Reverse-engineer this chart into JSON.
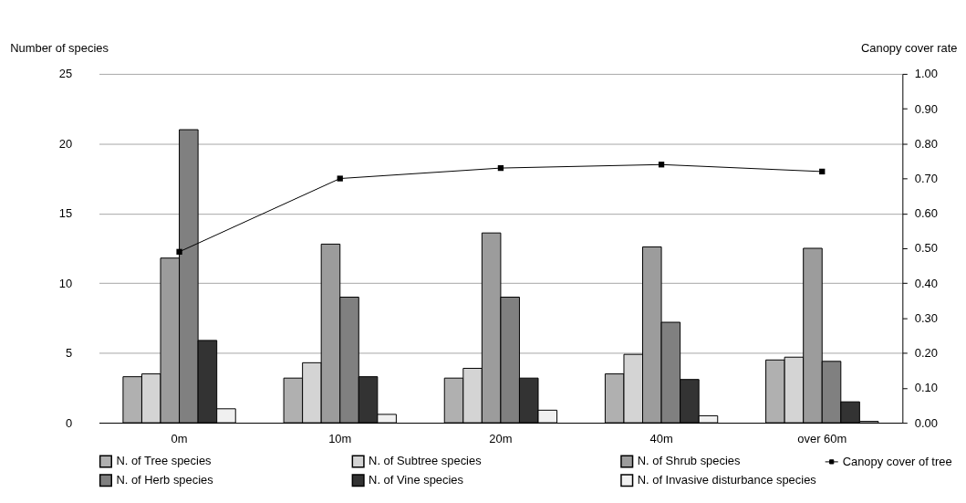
{
  "chart_data": {
    "type": "bar",
    "ylabel": "Number of species",
    "y2label": "Canopy cover rate",
    "categories": [
      "0m",
      "10m",
      "20m",
      "40m",
      "over 60m"
    ],
    "series": [
      {
        "name": "N. of Tree species",
        "color": "#b0b0b0",
        "values": [
          3.3,
          3.2,
          3.2,
          3.5,
          4.5
        ]
      },
      {
        "name": "N. of Subtree species",
        "color": "#d4d4d4",
        "values": [
          3.5,
          4.3,
          3.9,
          4.9,
          4.7
        ]
      },
      {
        "name": "N. of Shrub species",
        "color": "#9c9c9c",
        "values": [
          11.8,
          12.8,
          13.6,
          12.6,
          12.5
        ]
      },
      {
        "name": "N. of Herb species",
        "color": "#808080",
        "values": [
          21,
          9.0,
          9.0,
          7.2,
          4.4
        ]
      },
      {
        "name": "N. of Vine species",
        "color": "#333333",
        "values": [
          5.9,
          3.3,
          3.2,
          3.1,
          1.5
        ]
      },
      {
        "name": "N. of Invasive disturbance species",
        "color": "#f0f0f0",
        "values": [
          1.0,
          0.6,
          0.9,
          0.5,
          0.1
        ]
      },
      {
        "name": "Canopy cover of tree",
        "type": "line",
        "axis": "y2",
        "color": "#000000",
        "marker": "square",
        "values": [
          0.49,
          0.7,
          0.73,
          0.74,
          0.72
        ]
      }
    ],
    "ylim": [
      0,
      25
    ],
    "yticks": [
      0,
      5,
      10,
      15,
      20,
      25
    ],
    "y2lim": [
      0,
      1
    ],
    "y2ticks": [
      {
        "value": 0,
        "label": "0.00"
      },
      {
        "value": 0.1,
        "label": "0.10"
      },
      {
        "value": 0.2,
        "label": "0.20"
      },
      {
        "value": 0.3,
        "label": "0.30"
      },
      {
        "value": 0.4,
        "label": "0.40"
      },
      {
        "value": 0.5,
        "label": "0.50"
      },
      {
        "value": 0.6,
        "label": "0.60"
      },
      {
        "value": 0.7,
        "label": "0.70"
      },
      {
        "value": 0.8,
        "label": "0.80"
      },
      {
        "value": 0.9,
        "label": "0.90"
      },
      {
        "value": 1,
        "label": "1.00"
      }
    ],
    "grid": "y",
    "legend": "bottom"
  }
}
